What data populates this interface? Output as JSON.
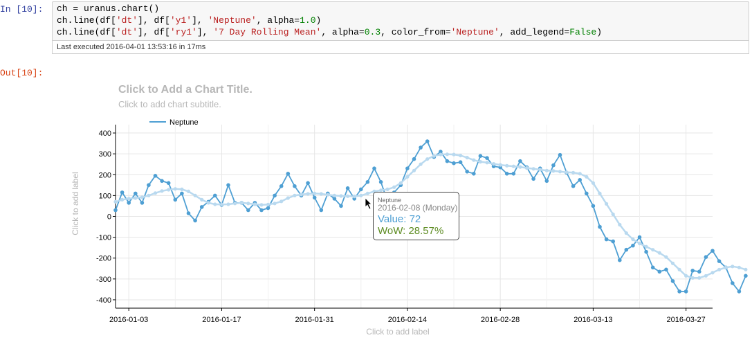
{
  "cell": {
    "in_prompt": "In [10]:",
    "out_prompt": "Out[10]:",
    "code": {
      "l1": "ch = uranus.chart()",
      "l2a": "ch.line(df[",
      "l2b": "'dt'",
      "l2c": "], df[",
      "l2d": "'y1'",
      "l2e": "], ",
      "l2f": "'Neptune'",
      "l2g": ", alpha=",
      "l2h": "1.0",
      "l2i": ")",
      "l3a": "ch.line(df[",
      "l3b": "'dt'",
      "l3c": "], df[",
      "l3d": "'ry1'",
      "l3e": "], ",
      "l3f": "'7 Day Rolling Mean'",
      "l3g": ", alpha=",
      "l3h": "0.3",
      "l3i": ", color_from=",
      "l3j": "'Neptune'",
      "l3k": ", add_legend=",
      "l3l": "False",
      "l3m": ")"
    },
    "last_executed": "Last executed 2016-04-01 13:53:16 in 17ms"
  },
  "tooltip": {
    "series": "Neptune",
    "date": "2016-02-08 (Monday)",
    "value": "Value: 72",
    "wow": "WoW: 28.57%"
  },
  "colors": {
    "series": "#4e9fd3",
    "rolling": "#b9d9ef",
    "grid": "#e6e6e6",
    "placeholder": "#b7b7b7"
  },
  "chart_data": {
    "type": "line",
    "title": "Click to Add a Chart Title.",
    "subtitle": "Click to add chart subtitle.",
    "xlabel": "Click to add label",
    "ylabel": "Click to add label",
    "ylim": [
      -440,
      440
    ],
    "yticks": [
      400,
      300,
      200,
      100,
      0,
      -100,
      -200,
      -300,
      -400
    ],
    "xlim": [
      "2016-01-01",
      "2016-03-31"
    ],
    "xticks": [
      "2016-01-03",
      "2016-01-17",
      "2016-01-31",
      "2016-02-14",
      "2016-02-28",
      "2016-03-13",
      "2016-03-27"
    ],
    "x_start": "2016-01-01",
    "legend": "top-left",
    "legend_entries": [
      "Neptune"
    ],
    "grid": true,
    "series": [
      {
        "name": "Neptune",
        "values": [
          30,
          115,
          65,
          110,
          65,
          150,
          195,
          170,
          160,
          80,
          110,
          15,
          -20,
          45,
          70,
          100,
          55,
          150,
          65,
          65,
          30,
          65,
          30,
          40,
          100,
          145,
          205,
          145,
          100,
          160,
          90,
          30,
          110,
          85,
          50,
          135,
          85,
          130,
          165,
          230,
          165,
          72,
          115,
          150,
          230,
          275,
          330,
          360,
          285,
          310,
          265,
          255,
          260,
          215,
          205,
          290,
          280,
          240,
          235,
          205,
          205,
          265,
          235,
          180,
          230,
          170,
          245,
          295,
          210,
          145,
          175,
          110,
          50,
          -50,
          -110,
          -120,
          -210,
          -160,
          -140,
          -100,
          -170,
          -245,
          -265,
          -255,
          -310,
          -360,
          -360,
          -260,
          -265,
          -195,
          -165,
          -215,
          -245,
          -320,
          -360,
          -285
        ]
      },
      {
        "name": "7 Day Rolling Mean",
        "values": [
          70,
          80,
          85,
          88,
          92,
          100,
          112,
          122,
          128,
          132,
          130,
          120,
          100,
          80,
          65,
          58,
          57,
          58,
          62,
          65,
          62,
          58,
          55,
          57,
          62,
          72,
          88,
          100,
          105,
          108,
          110,
          108,
          104,
          100,
          98,
          97,
          96,
          100,
          110,
          120,
          125,
          130,
          140,
          160,
          190,
          220,
          250,
          275,
          290,
          297,
          298,
          297,
          292,
          282,
          270,
          262,
          258,
          252,
          247,
          243,
          240,
          237,
          232,
          228,
          224,
          220,
          218,
          215,
          212,
          210,
          205,
          190,
          160,
          110,
          60,
          10,
          -40,
          -80,
          -110,
          -130,
          -145,
          -160,
          -175,
          -195,
          -225,
          -255,
          -285,
          -295,
          -295,
          -285,
          -270,
          -255,
          -245,
          -240,
          -245,
          -255
        ]
      }
    ]
  }
}
